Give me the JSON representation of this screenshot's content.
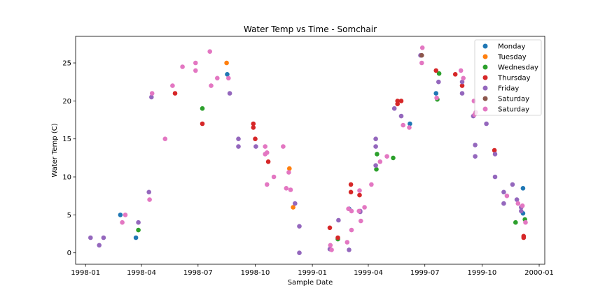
{
  "chart_data": {
    "type": "scatter",
    "title": "Water Temp vs Time - Somchair",
    "xlabel": "Sample Date",
    "ylabel": "Water Temp (C)",
    "xlim": [
      "1997-12-16",
      "2000-01-10"
    ],
    "ylim": [
      -1.5,
      28.5
    ],
    "x_ticks": [
      "1998-01",
      "1998-04",
      "1998-07",
      "1998-10",
      "1999-01",
      "1999-04",
      "1999-07",
      "1999-10",
      "2000-01"
    ],
    "y_ticks": [
      0,
      5,
      10,
      15,
      20,
      25
    ],
    "grid": false,
    "legend_position": "top-right",
    "series": [
      {
        "name": "Monday",
        "color": "#1f77b4",
        "points": [
          [
            "1998-02-26",
            5.0
          ],
          [
            "1998-03-23",
            2.0
          ],
          [
            "1998-08-17",
            23.5
          ],
          [
            "1999-03-01",
            5.8
          ],
          [
            "1999-06-07",
            17.0
          ],
          [
            "1999-07-19",
            21.0
          ],
          [
            "1999-12-06",
            5.2
          ],
          [
            "1999-12-06",
            8.5
          ]
        ]
      },
      {
        "name": "Tuesday",
        "color": "#ff7f0e",
        "points": [
          [
            "1998-08-16",
            25.0
          ],
          [
            "1998-11-25",
            11.1
          ],
          [
            "1998-12-01",
            6.0
          ]
        ]
      },
      {
        "name": "Wednesday",
        "color": "#2ca02c",
        "points": [
          [
            "1998-03-27",
            3.0
          ],
          [
            "1998-07-08",
            19.0
          ],
          [
            "1999-02-11",
            1.8
          ],
          [
            "1999-04-14",
            11.0
          ],
          [
            "1999-04-15",
            13.0
          ],
          [
            "1999-05-11",
            12.5
          ],
          [
            "1999-07-21",
            20.2
          ],
          [
            "1999-07-24",
            23.6
          ],
          [
            "1999-11-24",
            4.0
          ],
          [
            "1999-12-09",
            4.4
          ]
        ]
      },
      {
        "name": "Thursday",
        "color": "#d62728",
        "points": [
          [
            "1998-05-25",
            21.0
          ],
          [
            "1998-07-08",
            17.0
          ],
          [
            "1998-09-28",
            17.0
          ],
          [
            "1998-09-28",
            16.5
          ],
          [
            "1998-10-01",
            15.0
          ],
          [
            "1998-10-22",
            12.0
          ],
          [
            "1999-01-29",
            3.3
          ],
          [
            "1999-02-11",
            2.0
          ],
          [
            "1999-03-04",
            9.0
          ],
          [
            "1999-03-04",
            8.0
          ],
          [
            "1999-03-18",
            7.6
          ],
          [
            "1999-05-18",
            20.0
          ],
          [
            "1999-05-18",
            19.6
          ],
          [
            "1999-05-24",
            20.0
          ],
          [
            "1999-07-19",
            24.0
          ],
          [
            "1999-08-19",
            23.5
          ],
          [
            "1999-08-30",
            22.0
          ],
          [
            "1999-10-21",
            13.5
          ],
          [
            "1999-12-07",
            2.2
          ],
          [
            "1999-12-07",
            2.0
          ]
        ]
      },
      {
        "name": "Friday",
        "color": "#9467bd",
        "points": [
          [
            "1998-01-09",
            2.0
          ],
          [
            "1998-01-23",
            1.0
          ],
          [
            "1998-01-30",
            2.0
          ],
          [
            "1998-03-27",
            4.0
          ],
          [
            "1998-04-13",
            8.0
          ],
          [
            "1998-04-17",
            20.5
          ],
          [
            "1998-08-21",
            21.0
          ],
          [
            "1998-09-04",
            14.0
          ],
          [
            "1998-09-04",
            15.0
          ],
          [
            "1998-10-02",
            14.0
          ],
          [
            "1998-12-04",
            6.5
          ],
          [
            "1998-12-11",
            3.5
          ],
          [
            "1998-12-11",
            0.0
          ],
          [
            "1999-01-29",
            0.5
          ],
          [
            "1999-02-12",
            4.3
          ],
          [
            "1999-03-01",
            0.4
          ],
          [
            "1999-03-19",
            5.5
          ],
          [
            "1999-03-19",
            5.4
          ],
          [
            "1999-04-13",
            11.5
          ],
          [
            "1999-04-13",
            14.0
          ],
          [
            "1999-04-13",
            15.0
          ],
          [
            "1999-05-13",
            19.0
          ],
          [
            "1999-05-24",
            18.0
          ],
          [
            "1999-06-24",
            26.0
          ],
          [
            "1999-07-23",
            22.5
          ],
          [
            "1999-08-30",
            21.0
          ],
          [
            "1999-08-30",
            22.5
          ],
          [
            "1999-09-17",
            18.0
          ],
          [
            "1999-09-20",
            14.2
          ],
          [
            "1999-09-20",
            12.7
          ],
          [
            "1999-10-08",
            17.0
          ],
          [
            "1999-10-22",
            13.0
          ],
          [
            "1999-10-22",
            10.0
          ],
          [
            "1999-11-05",
            6.5
          ],
          [
            "1999-11-05",
            8.0
          ],
          [
            "1999-11-19",
            9.0
          ],
          [
            "1999-11-26",
            7.0
          ],
          [
            "1999-12-03",
            6.0
          ],
          [
            "1999-12-03",
            5.5
          ]
        ]
      },
      {
        "name": "Saturday",
        "color": "#8c564b",
        "points": [
          [
            "1999-06-26",
            26.0
          ]
        ]
      },
      {
        "name": "Saturday",
        "color": "#e377c2",
        "points": [
          [
            "1998-03-01",
            4.0
          ],
          [
            "1998-03-06",
            5.0
          ],
          [
            "1998-04-14",
            7.0
          ],
          [
            "1998-04-18",
            21.0
          ],
          [
            "1998-05-09",
            15.0
          ],
          [
            "1998-05-21",
            22.0
          ],
          [
            "1998-06-06",
            24.5
          ],
          [
            "1998-06-27",
            25.0
          ],
          [
            "1998-06-27",
            24.0
          ],
          [
            "1998-07-20",
            26.5
          ],
          [
            "1998-07-22",
            22.0
          ],
          [
            "1998-08-01",
            23.0
          ],
          [
            "1998-08-19",
            23.0
          ],
          [
            "1998-10-17",
            14.0
          ],
          [
            "1998-10-17",
            13.0
          ],
          [
            "1998-10-20",
            13.2
          ],
          [
            "1998-10-20",
            9.0
          ],
          [
            "1998-10-31",
            10.0
          ],
          [
            "1998-11-15",
            14.0
          ],
          [
            "1998-11-20",
            8.5
          ],
          [
            "1998-11-24",
            10.6
          ],
          [
            "1998-11-27",
            8.3
          ],
          [
            "1999-01-30",
            1.0
          ],
          [
            "1999-02-01",
            0.4
          ],
          [
            "1999-02-26",
            1.4
          ],
          [
            "1999-02-28",
            5.8
          ],
          [
            "1999-03-05",
            5.5
          ],
          [
            "1999-03-05",
            3.0
          ],
          [
            "1999-03-17",
            5.5
          ],
          [
            "1999-03-18",
            8.2
          ],
          [
            "1999-03-20",
            4.2
          ],
          [
            "1999-03-26",
            6.0
          ],
          [
            "1999-04-06",
            9.0
          ],
          [
            "1999-04-20",
            12.0
          ],
          [
            "1999-05-01",
            12.7
          ],
          [
            "1999-05-27",
            16.8
          ],
          [
            "1999-06-06",
            16.5
          ],
          [
            "1999-06-26",
            25.0
          ],
          [
            "1999-06-27",
            27.0
          ],
          [
            "1999-07-20",
            20.4
          ],
          [
            "1999-08-28",
            24.0
          ],
          [
            "1999-09-01",
            23.0
          ],
          [
            "1999-09-18",
            20.0
          ],
          [
            "1999-09-19",
            18.2
          ],
          [
            "1999-09-21",
            18.5
          ],
          [
            "1999-11-10",
            7.5
          ],
          [
            "1999-11-28",
            6.5
          ],
          [
            "1999-12-05",
            6.2
          ],
          [
            "1999-12-10",
            4.0
          ]
        ]
      }
    ]
  }
}
